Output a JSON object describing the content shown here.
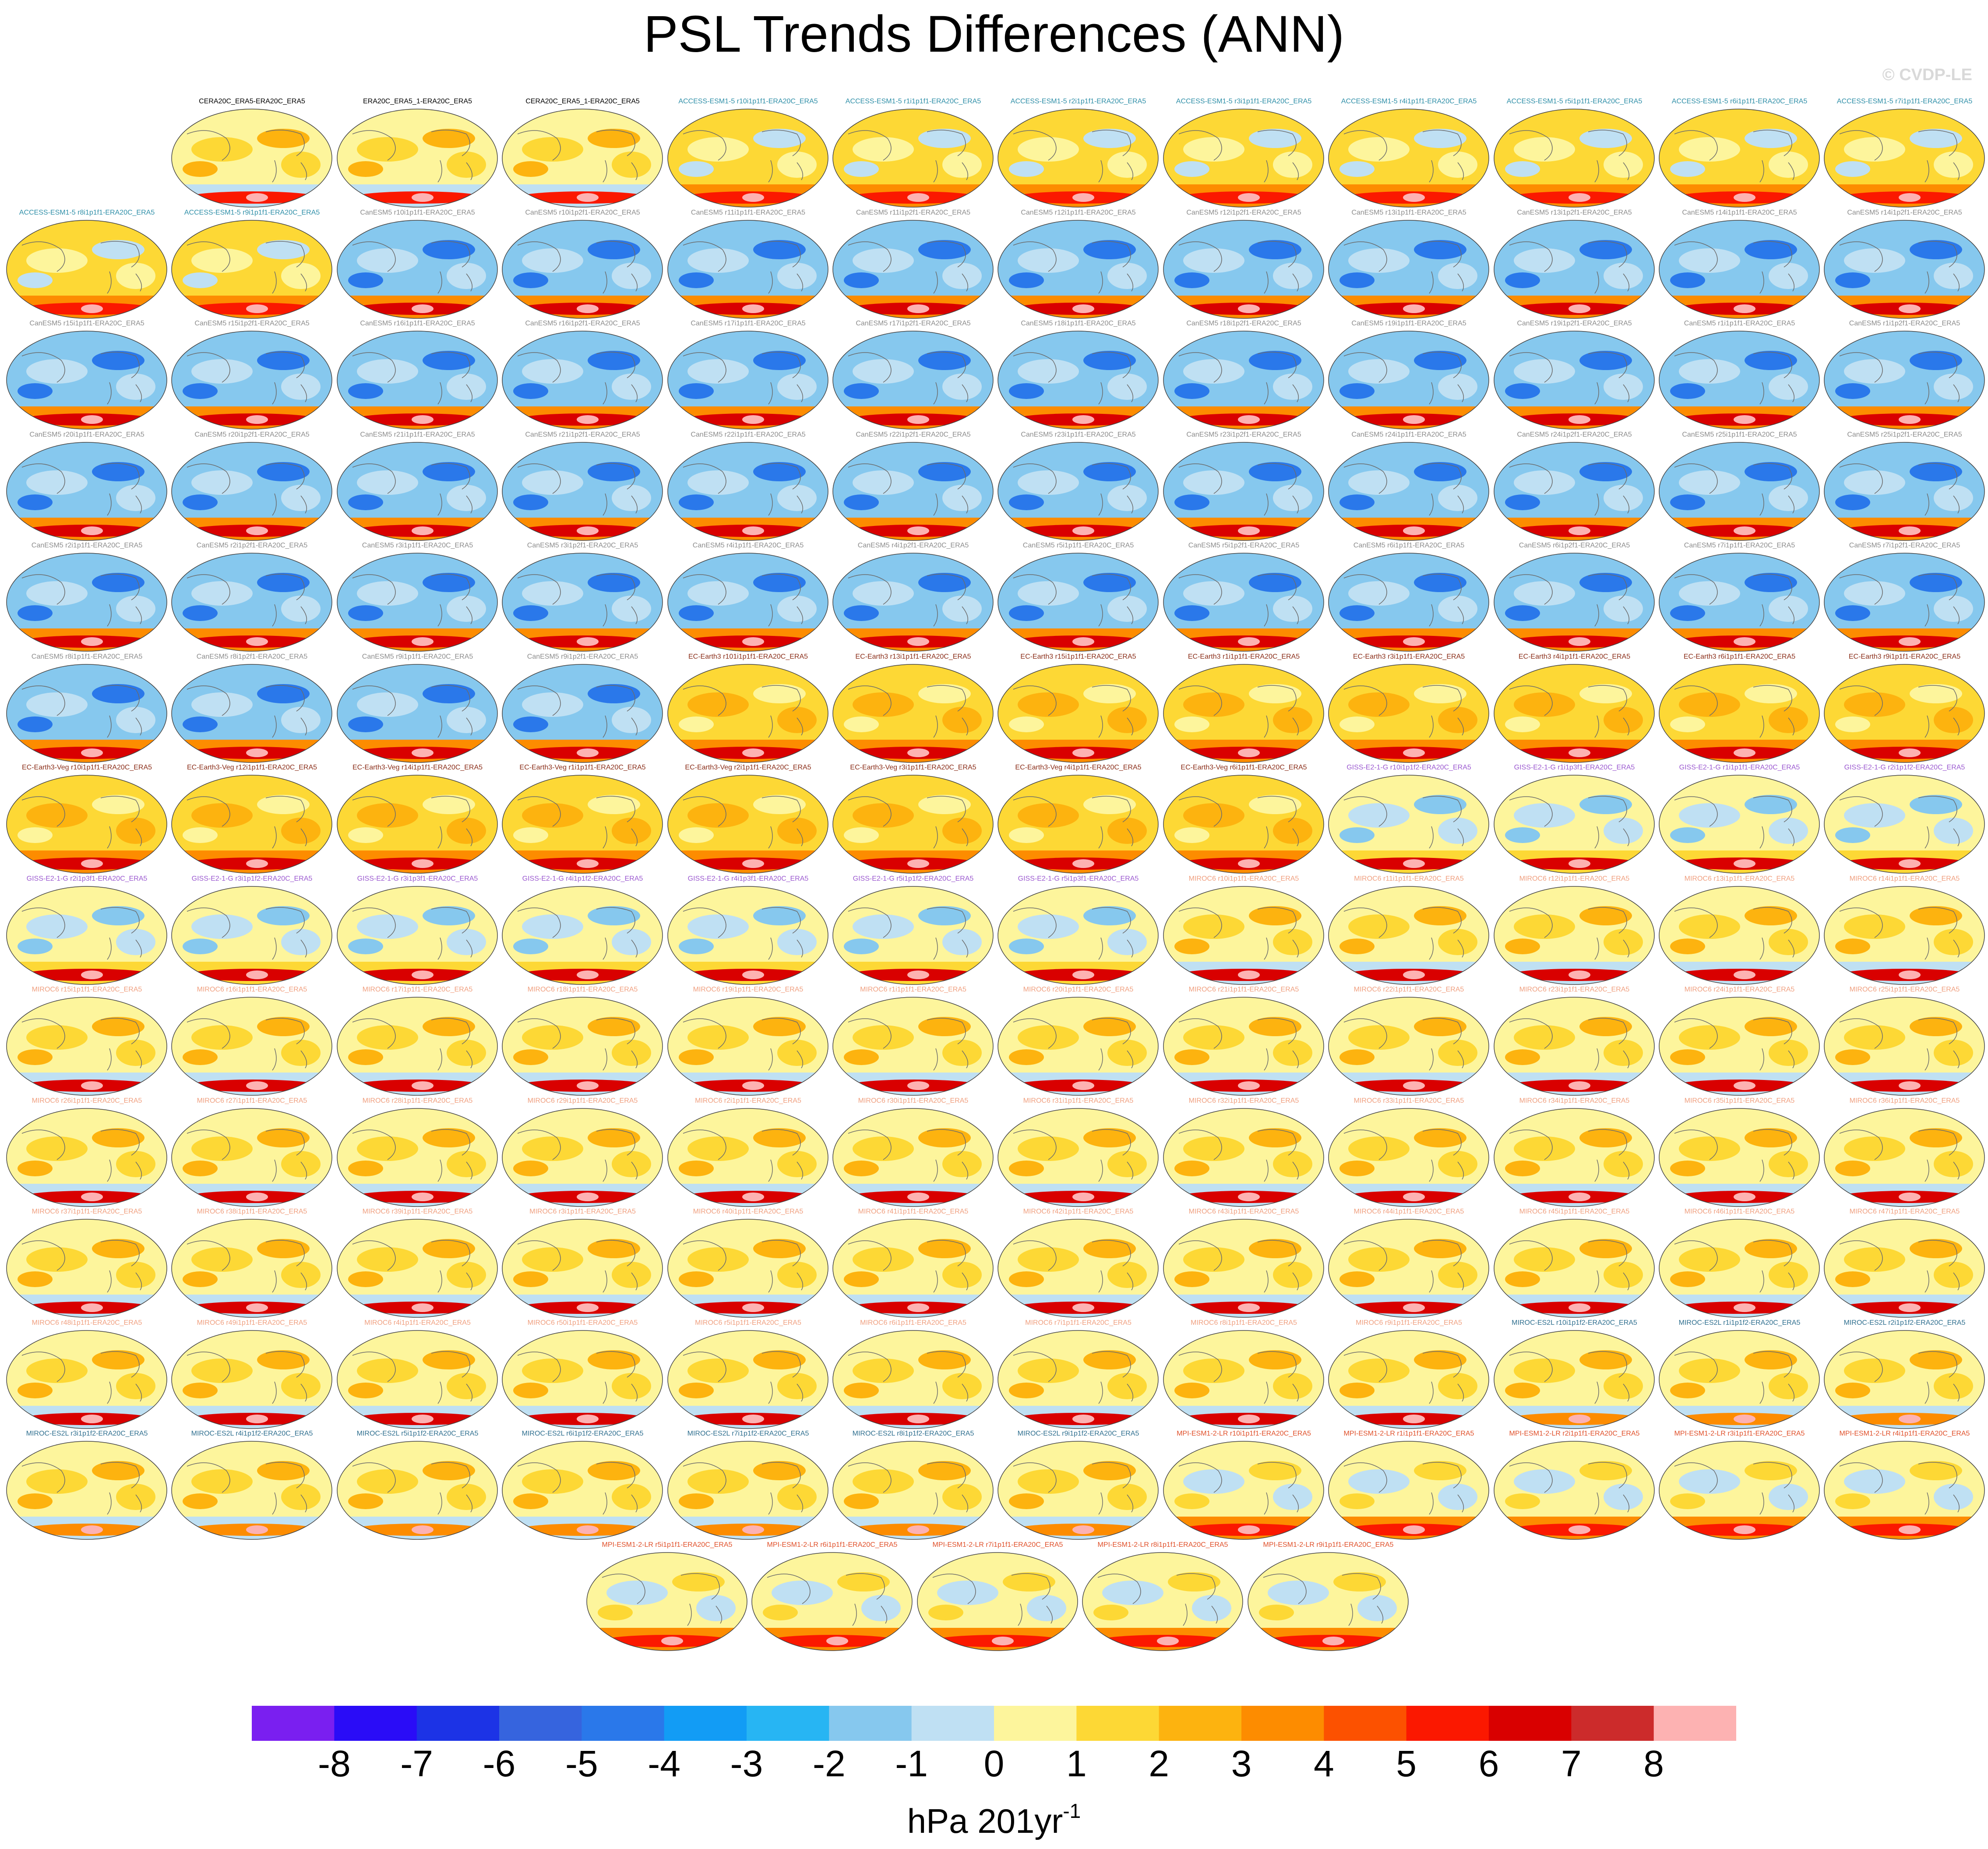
{
  "title": "PSL Trends Differences (ANN)",
  "watermark": "© CVDP-LE",
  "colorbar": {
    "units_prefix": "hPa 201yr",
    "units_exponent": "-1",
    "ticks": [
      "-8",
      "-7",
      "-6",
      "-5",
      "-4",
      "-3",
      "-2",
      "-1",
      "0",
      "1",
      "2",
      "3",
      "4",
      "5",
      "6",
      "7",
      "8"
    ],
    "colors": [
      "#7a1ff0",
      "#2a0cf7",
      "#1c33e6",
      "#3664de",
      "#2a78ea",
      "#129cf5",
      "#27b5f3",
      "#86c8ee",
      "#bfe0f3",
      "#fdf59c",
      "#fdd835",
      "#fdb30f",
      "#fd8c00",
      "#fc5100",
      "#fb1800",
      "#d90000",
      "#cc2b2b",
      "#fdb2b2"
    ]
  },
  "group_styles": {
    "obs": {
      "label_color": "#000000",
      "map": [
        "#fdf59c",
        "#fdd835",
        "#fdb30f",
        "#bfe0f3",
        "#fb1800"
      ]
    },
    "access": {
      "label_color": "#2f8fa8",
      "map": [
        "#fdd835",
        "#fdf59c",
        "#bfe0f3",
        "#fd8c00",
        "#fb1800"
      ]
    },
    "canesm": {
      "label_color": "#8c8c8c",
      "map": [
        "#86c8ee",
        "#bfe0f3",
        "#2a78ea",
        "#fd8c00",
        "#d90000"
      ]
    },
    "ecearth": {
      "label_color": "#8a2d18",
      "map": [
        "#fdd835",
        "#fdb30f",
        "#fdf59c",
        "#fd8c00",
        "#d90000"
      ]
    },
    "giss": {
      "label_color": "#9b59d0",
      "map": [
        "#fdf59c",
        "#bfe0f3",
        "#86c8ee",
        "#fdd835",
        "#d90000"
      ]
    },
    "miroc6": {
      "label_color": "#f0a080",
      "map": [
        "#fdf59c",
        "#fdd835",
        "#fdb30f",
        "#bfe0f3",
        "#d90000"
      ]
    },
    "miroces": {
      "label_color": "#2f6f8f",
      "map": [
        "#fdf59c",
        "#fdd835",
        "#fdb30f",
        "#bfe0f3",
        "#fd8c00"
      ]
    },
    "mpi": {
      "label_color": "#e0502a",
      "map": [
        "#fdf59c",
        "#bfe0f3",
        "#fdd835",
        "#fd8c00",
        "#fb1800"
      ]
    }
  },
  "panels": [
    {
      "label": "CERA20C_ERA5-ERA20C_ERA5",
      "group": "obs"
    },
    {
      "label": "ERA20C_ERA5_1-ERA20C_ERA5",
      "group": "obs"
    },
    {
      "label": "CERA20C_ERA5_1-ERA20C_ERA5",
      "group": "obs"
    },
    {
      "label": "ACCESS-ESM1-5 r10i1p1f1-ERA20C_ERA5",
      "group": "access"
    },
    {
      "label": "ACCESS-ESM1-5 r1i1p1f1-ERA20C_ERA5",
      "group": "access"
    },
    {
      "label": "ACCESS-ESM1-5 r2i1p1f1-ERA20C_ERA5",
      "group": "access"
    },
    {
      "label": "ACCESS-ESM1-5 r3i1p1f1-ERA20C_ERA5",
      "group": "access"
    },
    {
      "label": "ACCESS-ESM1-5 r4i1p1f1-ERA20C_ERA5",
      "group": "access"
    },
    {
      "label": "ACCESS-ESM1-5 r5i1p1f1-ERA20C_ERA5",
      "group": "access"
    },
    {
      "label": "ACCESS-ESM1-5 r6i1p1f1-ERA20C_ERA5",
      "group": "access"
    },
    {
      "label": "ACCESS-ESM1-5 r7i1p1f1-ERA20C_ERA5",
      "group": "access"
    },
    {
      "label": "ACCESS-ESM1-5 r8i1p1f1-ERA20C_ERA5",
      "group": "access"
    },
    {
      "label": "ACCESS-ESM1-5 r9i1p1f1-ERA20C_ERA5",
      "group": "access"
    },
    {
      "label": "CanESM5 r10i1p1f1-ERA20C_ERA5",
      "group": "canesm"
    },
    {
      "label": "CanESM5 r10i1p2f1-ERA20C_ERA5",
      "group": "canesm"
    },
    {
      "label": "CanESM5 r11i1p1f1-ERA20C_ERA5",
      "group": "canesm"
    },
    {
      "label": "CanESM5 r11i1p2f1-ERA20C_ERA5",
      "group": "canesm"
    },
    {
      "label": "CanESM5 r12i1p1f1-ERA20C_ERA5",
      "group": "canesm"
    },
    {
      "label": "CanESM5 r12i1p2f1-ERA20C_ERA5",
      "group": "canesm"
    },
    {
      "label": "CanESM5 r13i1p1f1-ERA20C_ERA5",
      "group": "canesm"
    },
    {
      "label": "CanESM5 r13i1p2f1-ERA20C_ERA5",
      "group": "canesm"
    },
    {
      "label": "CanESM5 r14i1p1f1-ERA20C_ERA5",
      "group": "canesm"
    },
    {
      "label": "CanESM5 r14i1p2f1-ERA20C_ERA5",
      "group": "canesm"
    },
    {
      "label": "CanESM5 r15i1p1f1-ERA20C_ERA5",
      "group": "canesm"
    },
    {
      "label": "CanESM5 r15i1p2f1-ERA20C_ERA5",
      "group": "canesm"
    },
    {
      "label": "CanESM5 r16i1p1f1-ERA20C_ERA5",
      "group": "canesm"
    },
    {
      "label": "CanESM5 r16i1p2f1-ERA20C_ERA5",
      "group": "canesm"
    },
    {
      "label": "CanESM5 r17i1p1f1-ERA20C_ERA5",
      "group": "canesm"
    },
    {
      "label": "CanESM5 r17i1p2f1-ERA20C_ERA5",
      "group": "canesm"
    },
    {
      "label": "CanESM5 r18i1p1f1-ERA20C_ERA5",
      "group": "canesm"
    },
    {
      "label": "CanESM5 r18i1p2f1-ERA20C_ERA5",
      "group": "canesm"
    },
    {
      "label": "CanESM5 r19i1p1f1-ERA20C_ERA5",
      "group": "canesm"
    },
    {
      "label": "CanESM5 r19i1p2f1-ERA20C_ERA5",
      "group": "canesm"
    },
    {
      "label": "CanESM5 r1i1p1f1-ERA20C_ERA5",
      "group": "canesm"
    },
    {
      "label": "CanESM5 r1i1p2f1-ERA20C_ERA5",
      "group": "canesm"
    },
    {
      "label": "CanESM5 r20i1p1f1-ERA20C_ERA5",
      "group": "canesm"
    },
    {
      "label": "CanESM5 r20i1p2f1-ERA20C_ERA5",
      "group": "canesm"
    },
    {
      "label": "CanESM5 r21i1p1f1-ERA20C_ERA5",
      "group": "canesm"
    },
    {
      "label": "CanESM5 r21i1p2f1-ERA20C_ERA5",
      "group": "canesm"
    },
    {
      "label": "CanESM5 r22i1p1f1-ERA20C_ERA5",
      "group": "canesm"
    },
    {
      "label": "CanESM5 r22i1p2f1-ERA20C_ERA5",
      "group": "canesm"
    },
    {
      "label": "CanESM5 r23i1p1f1-ERA20C_ERA5",
      "group": "canesm"
    },
    {
      "label": "CanESM5 r23i1p2f1-ERA20C_ERA5",
      "group": "canesm"
    },
    {
      "label": "CanESM5 r24i1p1f1-ERA20C_ERA5",
      "group": "canesm"
    },
    {
      "label": "CanESM5 r24i1p2f1-ERA20C_ERA5",
      "group": "canesm"
    },
    {
      "label": "CanESM5 r25i1p1f1-ERA20C_ERA5",
      "group": "canesm"
    },
    {
      "label": "CanESM5 r25i1p2f1-ERA20C_ERA5",
      "group": "canesm"
    },
    {
      "label": "CanESM5 r2i1p1f1-ERA20C_ERA5",
      "group": "canesm"
    },
    {
      "label": "CanESM5 r2i1p2f1-ERA20C_ERA5",
      "group": "canesm"
    },
    {
      "label": "CanESM5 r3i1p1f1-ERA20C_ERA5",
      "group": "canesm"
    },
    {
      "label": "CanESM5 r3i1p2f1-ERA20C_ERA5",
      "group": "canesm"
    },
    {
      "label": "CanESM5 r4i1p1f1-ERA20C_ERA5",
      "group": "canesm"
    },
    {
      "label": "CanESM5 r4i1p2f1-ERA20C_ERA5",
      "group": "canesm"
    },
    {
      "label": "CanESM5 r5i1p1f1-ERA20C_ERA5",
      "group": "canesm"
    },
    {
      "label": "CanESM5 r5i1p2f1-ERA20C_ERA5",
      "group": "canesm"
    },
    {
      "label": "CanESM5 r6i1p1f1-ERA20C_ERA5",
      "group": "canesm"
    },
    {
      "label": "CanESM5 r6i1p2f1-ERA20C_ERA5",
      "group": "canesm"
    },
    {
      "label": "CanESM5 r7i1p1f1-ERA20C_ERA5",
      "group": "canesm"
    },
    {
      "label": "CanESM5 r7i1p2f1-ERA20C_ERA5",
      "group": "canesm"
    },
    {
      "label": "CanESM5 r8i1p1f1-ERA20C_ERA5",
      "group": "canesm"
    },
    {
      "label": "CanESM5 r8i1p2f1-ERA20C_ERA5",
      "group": "canesm"
    },
    {
      "label": "CanESM5 r9i1p1f1-ERA20C_ERA5",
      "group": "canesm"
    },
    {
      "label": "CanESM5 r9i1p2f1-ERA20C_ERA5",
      "group": "canesm"
    },
    {
      "label": "EC-Earth3 r101i1p1f1-ERA20C_ERA5",
      "group": "ecearth"
    },
    {
      "label": "EC-Earth3 r13i1p1f1-ERA20C_ERA5",
      "group": "ecearth"
    },
    {
      "label": "EC-Earth3 r15i1p1f1-ERA20C_ERA5",
      "group": "ecearth"
    },
    {
      "label": "EC-Earth3 r1i1p1f1-ERA20C_ERA5",
      "group": "ecearth"
    },
    {
      "label": "EC-Earth3 r3i1p1f1-ERA20C_ERA5",
      "group": "ecearth"
    },
    {
      "label": "EC-Earth3 r4i1p1f1-ERA20C_ERA5",
      "group": "ecearth"
    },
    {
      "label": "EC-Earth3 r6i1p1f1-ERA20C_ERA5",
      "group": "ecearth"
    },
    {
      "label": "EC-Earth3 r9i1p1f1-ERA20C_ERA5",
      "group": "ecearth"
    },
    {
      "label": "EC-Earth3-Veg r10i1p1f1-ERA20C_ERA5",
      "group": "ecearth"
    },
    {
      "label": "EC-Earth3-Veg r12i1p1f1-ERA20C_ERA5",
      "group": "ecearth"
    },
    {
      "label": "EC-Earth3-Veg r14i1p1f1-ERA20C_ERA5",
      "group": "ecearth"
    },
    {
      "label": "EC-Earth3-Veg r1i1p1f1-ERA20C_ERA5",
      "group": "ecearth"
    },
    {
      "label": "EC-Earth3-Veg r2i1p1f1-ERA20C_ERA5",
      "group": "ecearth"
    },
    {
      "label": "EC-Earth3-Veg r3i1p1f1-ERA20C_ERA5",
      "group": "ecearth"
    },
    {
      "label": "EC-Earth3-Veg r4i1p1f1-ERA20C_ERA5",
      "group": "ecearth"
    },
    {
      "label": "EC-Earth3-Veg r6i1p1f1-ERA20C_ERA5",
      "group": "ecearth"
    },
    {
      "label": "GISS-E2-1-G r10i1p1f2-ERA20C_ERA5",
      "group": "giss"
    },
    {
      "label": "GISS-E2-1-G r1i1p3f1-ERA20C_ERA5",
      "group": "giss"
    },
    {
      "label": "GISS-E2-1-G r1i1p1f1-ERA20C_ERA5",
      "group": "giss"
    },
    {
      "label": "GISS-E2-1-G r2i1p1f2-ERA20C_ERA5",
      "group": "giss"
    },
    {
      "label": "GISS-E2-1-G r2i1p3f1-ERA20C_ERA5",
      "group": "giss"
    },
    {
      "label": "GISS-E2-1-G r3i1p1f2-ERA20C_ERA5",
      "group": "giss"
    },
    {
      "label": "GISS-E2-1-G r3i1p3f1-ERA20C_ERA5",
      "group": "giss"
    },
    {
      "label": "GISS-E2-1-G r4i1p1f2-ERA20C_ERA5",
      "group": "giss"
    },
    {
      "label": "GISS-E2-1-G r4i1p3f1-ERA20C_ERA5",
      "group": "giss"
    },
    {
      "label": "GISS-E2-1-G r5i1p1f2-ERA20C_ERA5",
      "group": "giss"
    },
    {
      "label": "GISS-E2-1-G r5i1p3f1-ERA20C_ERA5",
      "group": "giss"
    },
    {
      "label": "MIROC6 r10i1p1f1-ERA20C_ERA5",
      "group": "miroc6"
    },
    {
      "label": "MIROC6 r11i1p1f1-ERA20C_ERA5",
      "group": "miroc6"
    },
    {
      "label": "MIROC6 r12i1p1f1-ERA20C_ERA5",
      "group": "miroc6"
    },
    {
      "label": "MIROC6 r13i1p1f1-ERA20C_ERA5",
      "group": "miroc6"
    },
    {
      "label": "MIROC6 r14i1p1f1-ERA20C_ERA5",
      "group": "miroc6"
    },
    {
      "label": "MIROC6 r15i1p1f1-ERA20C_ERA5",
      "group": "miroc6"
    },
    {
      "label": "MIROC6 r16i1p1f1-ERA20C_ERA5",
      "group": "miroc6"
    },
    {
      "label": "MIROC6 r17i1p1f1-ERA20C_ERA5",
      "group": "miroc6"
    },
    {
      "label": "MIROC6 r18i1p1f1-ERA20C_ERA5",
      "group": "miroc6"
    },
    {
      "label": "MIROC6 r19i1p1f1-ERA20C_ERA5",
      "group": "miroc6"
    },
    {
      "label": "MIROC6 r1i1p1f1-ERA20C_ERA5",
      "group": "miroc6"
    },
    {
      "label": "MIROC6 r20i1p1f1-ERA20C_ERA5",
      "group": "miroc6"
    },
    {
      "label": "MIROC6 r21i1p1f1-ERA20C_ERA5",
      "group": "miroc6"
    },
    {
      "label": "MIROC6 r22i1p1f1-ERA20C_ERA5",
      "group": "miroc6"
    },
    {
      "label": "MIROC6 r23i1p1f1-ERA20C_ERA5",
      "group": "miroc6"
    },
    {
      "label": "MIROC6 r24i1p1f1-ERA20C_ERA5",
      "group": "miroc6"
    },
    {
      "label": "MIROC6 r25i1p1f1-ERA20C_ERA5",
      "group": "miroc6"
    },
    {
      "label": "MIROC6 r26i1p1f1-ERA20C_ERA5",
      "group": "miroc6"
    },
    {
      "label": "MIROC6 r27i1p1f1-ERA20C_ERA5",
      "group": "miroc6"
    },
    {
      "label": "MIROC6 r28i1p1f1-ERA20C_ERA5",
      "group": "miroc6"
    },
    {
      "label": "MIROC6 r29i1p1f1-ERA20C_ERA5",
      "group": "miroc6"
    },
    {
      "label": "MIROC6 r2i1p1f1-ERA20C_ERA5",
      "group": "miroc6"
    },
    {
      "label": "MIROC6 r30i1p1f1-ERA20C_ERA5",
      "group": "miroc6"
    },
    {
      "label": "MIROC6 r31i1p1f1-ERA20C_ERA5",
      "group": "miroc6"
    },
    {
      "label": "MIROC6 r32i1p1f1-ERA20C_ERA5",
      "group": "miroc6"
    },
    {
      "label": "MIROC6 r33i1p1f1-ERA20C_ERA5",
      "group": "miroc6"
    },
    {
      "label": "MIROC6 r34i1p1f1-ERA20C_ERA5",
      "group": "miroc6"
    },
    {
      "label": "MIROC6 r35i1p1f1-ERA20C_ERA5",
      "group": "miroc6"
    },
    {
      "label": "MIROC6 r36i1p1f1-ERA20C_ERA5",
      "group": "miroc6"
    },
    {
      "label": "MIROC6 r37i1p1f1-ERA20C_ERA5",
      "group": "miroc6"
    },
    {
      "label": "MIROC6 r38i1p1f1-ERA20C_ERA5",
      "group": "miroc6"
    },
    {
      "label": "MIROC6 r39i1p1f1-ERA20C_ERA5",
      "group": "miroc6"
    },
    {
      "label": "MIROC6 r3i1p1f1-ERA20C_ERA5",
      "group": "miroc6"
    },
    {
      "label": "MIROC6 r40i1p1f1-ERA20C_ERA5",
      "group": "miroc6"
    },
    {
      "label": "MIROC6 r41i1p1f1-ERA20C_ERA5",
      "group": "miroc6"
    },
    {
      "label": "MIROC6 r42i1p1f1-ERA20C_ERA5",
      "group": "miroc6"
    },
    {
      "label": "MIROC6 r43i1p1f1-ERA20C_ERA5",
      "group": "miroc6"
    },
    {
      "label": "MIROC6 r44i1p1f1-ERA20C_ERA5",
      "group": "miroc6"
    },
    {
      "label": "MIROC6 r45i1p1f1-ERA20C_ERA5",
      "group": "miroc6"
    },
    {
      "label": "MIROC6 r46i1p1f1-ERA20C_ERA5",
      "group": "miroc6"
    },
    {
      "label": "MIROC6 r47i1p1f1-ERA20C_ERA5",
      "group": "miroc6"
    },
    {
      "label": "MIROC6 r48i1p1f1-ERA20C_ERA5",
      "group": "miroc6"
    },
    {
      "label": "MIROC6 r49i1p1f1-ERA20C_ERA5",
      "group": "miroc6"
    },
    {
      "label": "MIROC6 r4i1p1f1-ERA20C_ERA5",
      "group": "miroc6"
    },
    {
      "label": "MIROC6 r50i1p1f1-ERA20C_ERA5",
      "group": "miroc6"
    },
    {
      "label": "MIROC6 r5i1p1f1-ERA20C_ERA5",
      "group": "miroc6"
    },
    {
      "label": "MIROC6 r6i1p1f1-ERA20C_ERA5",
      "group": "miroc6"
    },
    {
      "label": "MIROC6 r7i1p1f1-ERA20C_ERA5",
      "group": "miroc6"
    },
    {
      "label": "MIROC6 r8i1p1f1-ERA20C_ERA5",
      "group": "miroc6"
    },
    {
      "label": "MIROC6 r9i1p1f1-ERA20C_ERA5",
      "group": "miroc6"
    },
    {
      "label": "MIROC-ES2L r10i1p1f2-ERA20C_ERA5",
      "group": "miroces"
    },
    {
      "label": "MIROC-ES2L r1i1p1f2-ERA20C_ERA5",
      "group": "miroces"
    },
    {
      "label": "MIROC-ES2L r2i1p1f2-ERA20C_ERA5",
      "group": "miroces"
    },
    {
      "label": "MIROC-ES2L r3i1p1f2-ERA20C_ERA5",
      "group": "miroces"
    },
    {
      "label": "MIROC-ES2L r4i1p1f2-ERA20C_ERA5",
      "group": "miroces"
    },
    {
      "label": "MIROC-ES2L r5i1p1f2-ERA20C_ERA5",
      "group": "miroces"
    },
    {
      "label": "MIROC-ES2L r6i1p1f2-ERA20C_ERA5",
      "group": "miroces"
    },
    {
      "label": "MIROC-ES2L r7i1p1f2-ERA20C_ERA5",
      "group": "miroces"
    },
    {
      "label": "MIROC-ES2L r8i1p1f2-ERA20C_ERA5",
      "group": "miroces"
    },
    {
      "label": "MIROC-ES2L r9i1p1f2-ERA20C_ERA5",
      "group": "miroces"
    },
    {
      "label": "MPI-ESM1-2-LR r10i1p1f1-ERA20C_ERA5",
      "group": "mpi"
    },
    {
      "label": "MPI-ESM1-2-LR r1i1p1f1-ERA20C_ERA5",
      "group": "mpi"
    },
    {
      "label": "MPI-ESM1-2-LR r2i1p1f1-ERA20C_ERA5",
      "group": "mpi"
    },
    {
      "label": "MPI-ESM1-2-LR r3i1p1f1-ERA20C_ERA5",
      "group": "mpi"
    },
    {
      "label": "MPI-ESM1-2-LR r4i1p1f1-ERA20C_ERA5",
      "group": "mpi"
    },
    {
      "label": "MPI-ESM1-2-LR r5i1p1f1-ERA20C_ERA5",
      "group": "mpi"
    },
    {
      "label": "MPI-ESM1-2-LR r6i1p1f1-ERA20C_ERA5",
      "group": "mpi"
    },
    {
      "label": "MPI-ESM1-2-LR r7i1p1f1-ERA20C_ERA5",
      "group": "mpi"
    },
    {
      "label": "MPI-ESM1-2-LR r8i1p1f1-ERA20C_ERA5",
      "group": "mpi"
    },
    {
      "label": "MPI-ESM1-2-LR r9i1p1f1-ERA20C_ERA5",
      "group": "mpi"
    }
  ]
}
